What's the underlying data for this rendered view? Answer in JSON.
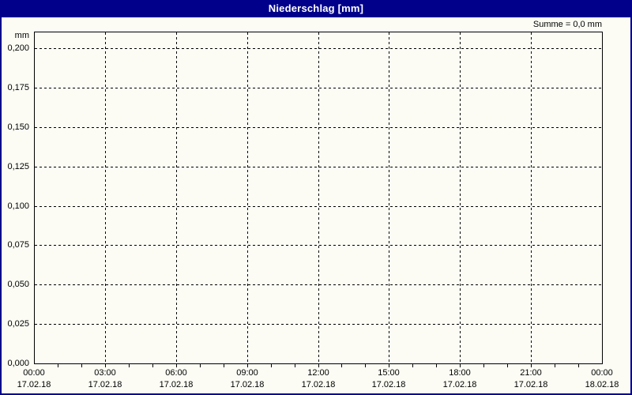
{
  "window": {
    "title": "Niederschlag [mm]"
  },
  "summary_label": "Summe = 0,0 mm",
  "axis_unit": "mm",
  "colors": {
    "titlebar_bg": "#00008B",
    "titlebar_text": "#FFFFFF",
    "frame_border": "#00008B",
    "background": "#FCFCF5",
    "grid_and_axis": "#000000",
    "label_text": "#000000"
  },
  "chart_data": {
    "type": "bar",
    "title": "Niederschlag [mm]",
    "ylabel": "mm",
    "xlabel": "",
    "ylim": [
      0,
      0.21
    ],
    "y_tick_step_mm": 0.025,
    "y_ticks": [
      "0,200",
      "0,175",
      "0,150",
      "0,125",
      "0,100",
      "0,075",
      "0,050",
      "0,025",
      "0,000"
    ],
    "x_ticks": [
      {
        "time": "00:00",
        "date": "17.02.18"
      },
      {
        "time": "03:00",
        "date": "17.02.18"
      },
      {
        "time": "06:00",
        "date": "17.02.18"
      },
      {
        "time": "09:00",
        "date": "17.02.18"
      },
      {
        "time": "12:00",
        "date": "17.02.18"
      },
      {
        "time": "15:00",
        "date": "17.02.18"
      },
      {
        "time": "18:00",
        "date": "17.02.18"
      },
      {
        "time": "21:00",
        "date": "17.02.18"
      },
      {
        "time": "00:00",
        "date": "18.02.18"
      }
    ],
    "x_minor_ticks_per_interval": 3,
    "x_interval_hours": 3,
    "grid_style": "dashed",
    "legend": "none",
    "series": [
      {
        "name": "Niederschlag",
        "values": [],
        "sum_mm": 0.0
      }
    ],
    "annotations": [
      "Summe = 0,0 mm"
    ]
  }
}
